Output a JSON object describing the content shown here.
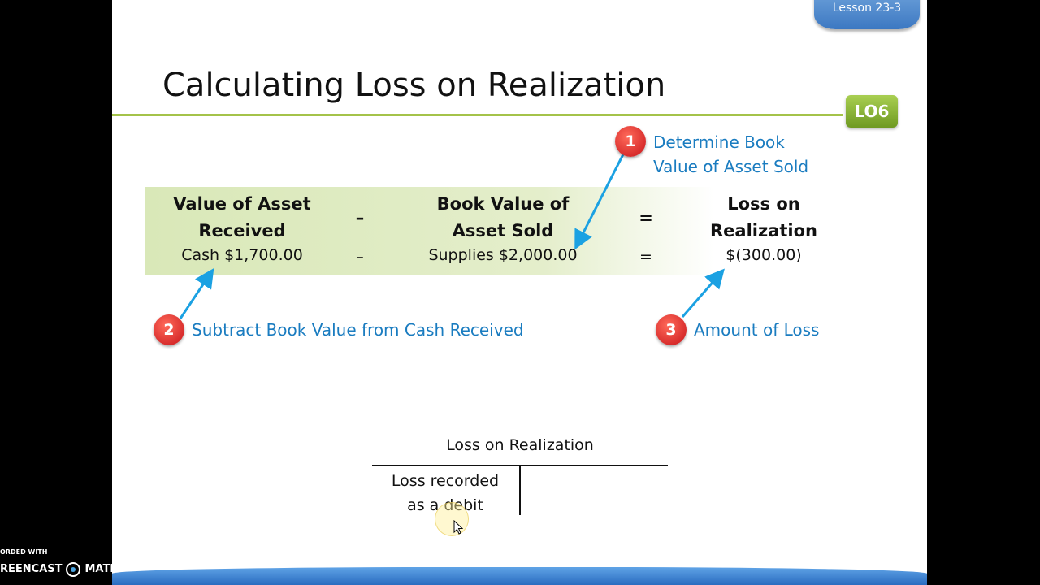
{
  "slide": {
    "title": "Calculating Loss on Realization",
    "lesson_tab": "Lesson 23-3",
    "objective_badge": "LO6",
    "equation": {
      "col1_header_line1": "Value of Asset",
      "col1_header_line2": "Received",
      "col1_value": "Cash  $1,700.00",
      "minus_sign": "–",
      "minus_sign_small": "–",
      "col2_header_line1": "Book Value of",
      "col2_header_line2": "Asset Sold",
      "col2_value": "Supplies  $2,000.00",
      "equals_sign": "=",
      "equals_sign_small": "=",
      "col3_header_line1": "Loss on",
      "col3_header_line2": "Realization",
      "col3_value": "$(300.00)"
    },
    "steps": [
      {
        "number": "1",
        "line1": "Determine Book",
        "line2": "Value of Asset Sold"
      },
      {
        "number": "2",
        "line1": "Subtract Book Value from Cash Received"
      },
      {
        "number": "3",
        "line1": "Amount of Loss"
      }
    ],
    "t_account": {
      "title": "Loss on Realization",
      "debit_line1": "Loss recorded",
      "debit_line2": "as a debit"
    }
  },
  "watermark": {
    "line1": "ORDED WITH",
    "line2": "REENCAST",
    "line3": "MATIC"
  },
  "colors": {
    "accent_green": "#a4c34a",
    "step_red": "#d0191f",
    "note_blue": "#1a7cc0",
    "arrow_blue": "#1ba1e2",
    "lesson_blue": "#3c78c2"
  }
}
